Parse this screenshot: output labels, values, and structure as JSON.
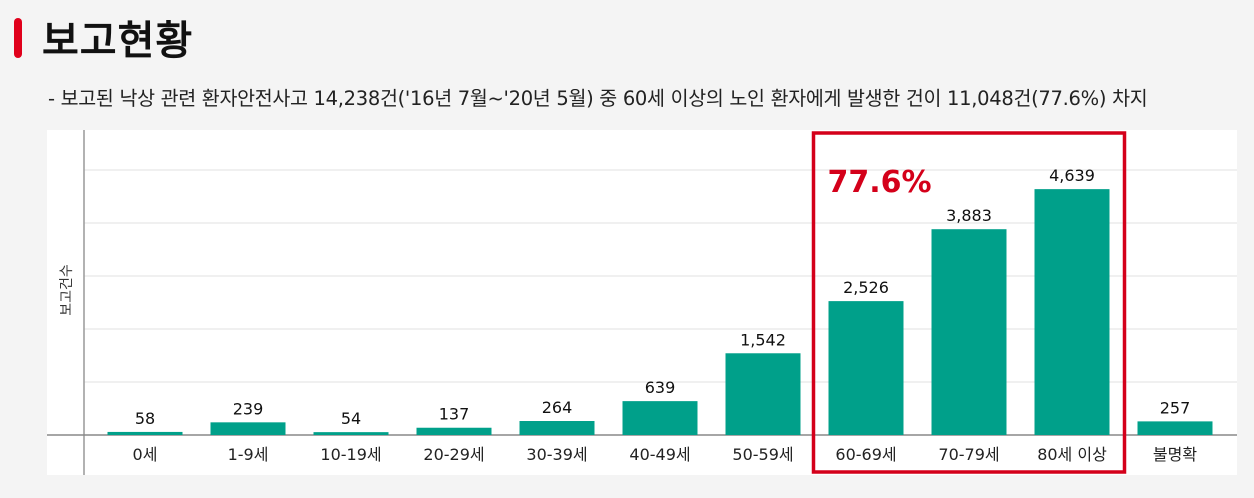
{
  "header": {
    "title": "보고현황",
    "subtitle": "- 보고된 낙상 관련 환자안전사고 14,238건('16년 7월~'20년 5월) 중 60세 이상의 노인 환자에게 발생한 건이 11,048건(77.6%) 차지"
  },
  "colors": {
    "accent": "#e0001b",
    "bar": "#00a08a",
    "highlight": "#d4001a",
    "grid": "#e6e6e6"
  },
  "chart_data": {
    "type": "bar",
    "title": "",
    "xlabel": "",
    "ylabel": "보고건수",
    "categories": [
      "0세",
      "1-9세",
      "10-19세",
      "20-29세",
      "30-39세",
      "40-49세",
      "50-59세",
      "60-69세",
      "70-79세",
      "80세 이상",
      "불명확"
    ],
    "values": [
      58,
      239,
      54,
      137,
      264,
      639,
      1542,
      2526,
      3883,
      4639,
      257
    ],
    "value_labels": [
      "58",
      "239",
      "54",
      "137",
      "264",
      "639",
      "1,542",
      "2,526",
      "3,883",
      "4,639",
      "257"
    ],
    "ylim": [
      0,
      5000
    ],
    "grid": true,
    "highlight": {
      "from_category": "60-69세",
      "to_category": "80세 이상",
      "label": "77.6%"
    }
  }
}
